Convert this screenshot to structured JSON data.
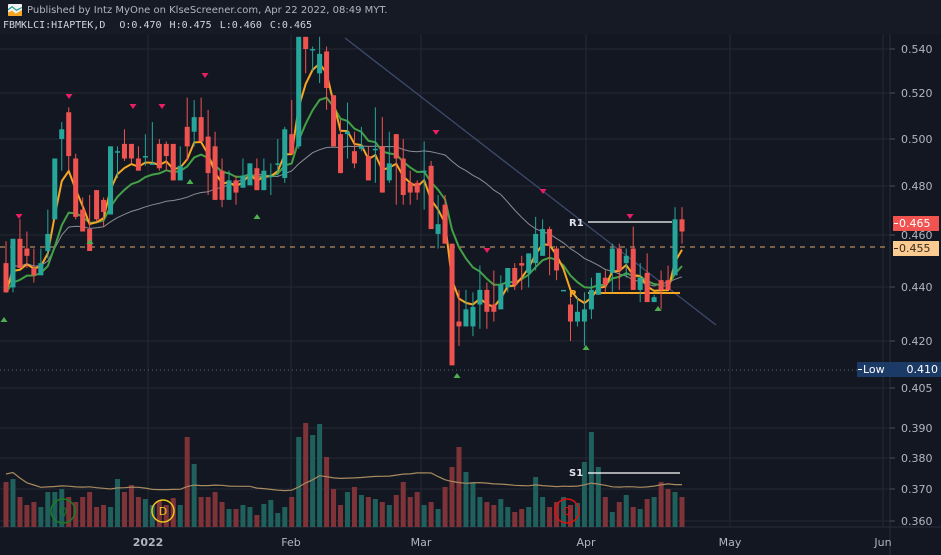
{
  "header": {
    "published_text": "Published by Intz MyOne on KlseScreener.com, Apr 22 2022, 08:49 MYT.",
    "symbol": "FBMKLCI:HIAPTEK,D",
    "open": "O:0.470",
    "high": "H:0.475",
    "low": "L:0.460",
    "close": "C:0.465",
    "logo_icon": "klsescreener-chart-logo-icon"
  },
  "price_axis": {
    "labels": [
      "0.540",
      "0.520",
      "0.500",
      "0.480",
      "0.460",
      "0.440",
      "0.420",
      "0.405",
      "0.390",
      "0.380",
      "0.370",
      "0.360"
    ],
    "close_tag": "0.465",
    "prev_tag": "0.455",
    "low_tag_label": "Low",
    "low_tag_value": "0.410"
  },
  "time_axis": {
    "labels": [
      "2022",
      "Feb",
      "Mar",
      "Apr",
      "May",
      "Jun"
    ]
  },
  "annotations": {
    "r1": "R1",
    "p": "P",
    "s1": "S1",
    "d_marker": "D",
    "q_marker": "Q"
  },
  "colors": {
    "background": "#131722",
    "up": "#26a69a",
    "down": "#ef5350",
    "vol_up": "#1f5f5c",
    "vol_down": "#7d3338",
    "ema_fast": "#f5a623",
    "ema_slow": "#43a047",
    "sma_long": "#8a8d96",
    "trendline": "#3c4a6b",
    "grid": "#242833"
  },
  "chart_data": {
    "type": "candlestick",
    "title": "FBMKLCI:HIAPTEK,D",
    "interval": "D",
    "last_bar": {
      "open": 0.47,
      "high": 0.475,
      "low": 0.46,
      "close": 0.465
    },
    "y_ticks": [
      0.54,
      0.52,
      0.5,
      0.48,
      0.46,
      0.44,
      0.42,
      0.405,
      0.39,
      0.38,
      0.37,
      0.36
    ],
    "x_ticks": [
      "2022",
      "Feb",
      "Mar",
      "Apr",
      "May",
      "Jun"
    ],
    "ylim": [
      0.355,
      0.545
    ],
    "reference_lines": {
      "previous_close": 0.455,
      "period_low": 0.41,
      "R1": 0.466,
      "P": 0.437,
      "S1": 0.376
    },
    "candles": [
      [
        0.452,
        0.44,
        0.461,
        0.44
      ],
      [
        0.442,
        0.462,
        0.462,
        0.44
      ],
      [
        0.462,
        0.45,
        0.47,
        0.45
      ],
      [
        0.458,
        0.455,
        0.465,
        0.45
      ],
      [
        0.45,
        0.447,
        0.458,
        0.444
      ],
      [
        0.447,
        0.452,
        0.458,
        0.447
      ],
      [
        0.457,
        0.464,
        0.474,
        0.454
      ],
      [
        0.47,
        0.495,
        0.495,
        0.47
      ],
      [
        0.503,
        0.507,
        0.51,
        0.49
      ],
      [
        0.514,
        0.496,
        0.516,
        0.49
      ],
      [
        0.495,
        0.471,
        0.497,
        0.47
      ],
      [
        0.474,
        0.465,
        0.479,
        0.465
      ],
      [
        0.466,
        0.457,
        0.48,
        0.457
      ],
      [
        0.482,
        0.47,
        0.482,
        0.469
      ],
      [
        0.478,
        0.473,
        0.479,
        0.467
      ],
      [
        0.472,
        0.5,
        0.5,
        0.472
      ],
      [
        0.498,
        0.498,
        0.5,
        0.487
      ],
      [
        0.501,
        0.495,
        0.507,
        0.494
      ],
      [
        0.501,
        0.495,
        0.501,
        0.493
      ],
      [
        0.495,
        0.49,
        0.5,
        0.49
      ],
      [
        0.496,
        0.496,
        0.505,
        0.492
      ],
      [
        0.493,
        0.493,
        0.51,
        0.493
      ],
      [
        0.501,
        0.491,
        0.503,
        0.49
      ],
      [
        0.501,
        0.496,
        0.502,
        0.49
      ],
      [
        0.501,
        0.486,
        0.501,
        0.486
      ],
      [
        0.486,
        0.492,
        0.5,
        0.488
      ],
      [
        0.508,
        0.5,
        0.52,
        0.494
      ],
      [
        0.506,
        0.512,
        0.519,
        0.5
      ],
      [
        0.512,
        0.502,
        0.52,
        0.502
      ],
      [
        0.504,
        0.489,
        0.515,
        0.48
      ],
      [
        0.5,
        0.478,
        0.506,
        0.478
      ],
      [
        0.49,
        0.478,
        0.495,
        0.475
      ],
      [
        0.478,
        0.486,
        0.49,
        0.48
      ],
      [
        0.486,
        0.481,
        0.488,
        0.476
      ],
      [
        0.483,
        0.488,
        0.495,
        0.483
      ],
      [
        0.484,
        0.493,
        0.493,
        0.484
      ],
      [
        0.491,
        0.482,
        0.495,
        0.482
      ],
      [
        0.482,
        0.49,
        0.495,
        0.482
      ],
      [
        0.488,
        0.488,
        0.493,
        0.48
      ],
      [
        0.493,
        0.493,
        0.503,
        0.488
      ],
      [
        0.487,
        0.507,
        0.508,
        0.485
      ],
      [
        0.505,
        0.497,
        0.519,
        0.497
      ],
      [
        0.5,
        0.545,
        0.545,
        0.499
      ],
      [
        0.545,
        0.54,
        0.545,
        0.53
      ],
      [
        0.54,
        0.54,
        0.541,
        0.531
      ],
      [
        0.53,
        0.538,
        0.545,
        0.526
      ],
      [
        0.539,
        0.524,
        0.541,
        0.515
      ],
      [
        0.521,
        0.5,
        0.521,
        0.5
      ],
      [
        0.505,
        0.489,
        0.511,
        0.489
      ],
      [
        0.505,
        0.506,
        0.518,
        0.495
      ],
      [
        0.498,
        0.493,
        0.506,
        0.491
      ],
      [
        0.499,
        0.5,
        0.508,
        0.498
      ],
      [
        0.496,
        0.486,
        0.5,
        0.486
      ],
      [
        0.499,
        0.499,
        0.516,
        0.485
      ],
      [
        0.5,
        0.481,
        0.512,
        0.481
      ],
      [
        0.486,
        0.493,
        0.506,
        0.485
      ],
      [
        0.505,
        0.495,
        0.505,
        0.476
      ],
      [
        0.495,
        0.48,
        0.503,
        0.476
      ],
      [
        0.485,
        0.481,
        0.49,
        0.476
      ],
      [
        0.485,
        0.481,
        0.486,
        0.478
      ],
      [
        0.49,
        0.49,
        0.502,
        0.474
      ],
      [
        0.492,
        0.466,
        0.494,
        0.476
      ],
      [
        0.464,
        0.468,
        0.48,
        0.458
      ],
      [
        0.476,
        0.46,
        0.48,
        0.46
      ],
      [
        0.46,
        0.41,
        0.46,
        0.41
      ],
      [
        0.428,
        0.426,
        0.441,
        0.418
      ],
      [
        0.426,
        0.433,
        0.441,
        0.426
      ],
      [
        0.426,
        0.434,
        0.44,
        0.422
      ],
      [
        0.435,
        0.441,
        0.451,
        0.425
      ],
      [
        0.441,
        0.432,
        0.444,
        0.425
      ],
      [
        0.435,
        0.432,
        0.449,
        0.428
      ],
      [
        0.433,
        0.443,
        0.447,
        0.434
      ],
      [
        0.442,
        0.45,
        0.448,
        0.44
      ],
      [
        0.45,
        0.443,
        0.452,
        0.441
      ],
      [
        0.452,
        0.451,
        0.455,
        0.441
      ],
      [
        0.448,
        0.456,
        0.456,
        0.442
      ],
      [
        0.452,
        0.464,
        0.471,
        0.449
      ],
      [
        0.455,
        0.466,
        0.47,
        0.455
      ],
      [
        0.466,
        0.459,
        0.467,
        0.447
      ],
      [
        0.458,
        0.449,
        0.459,
        0.445
      ],
      [
        0.441,
        0.441,
        0.441,
        0.441
      ],
      [
        0.435,
        0.428,
        0.438,
        0.42
      ],
      [
        0.428,
        0.432,
        0.438,
        0.426
      ],
      [
        0.428,
        0.433,
        0.44,
        0.418
      ],
      [
        0.433,
        0.441,
        0.446,
        0.429
      ],
      [
        0.439,
        0.448,
        0.448,
        0.439
      ],
      [
        0.446,
        0.443,
        0.449,
        0.44
      ],
      [
        0.448,
        0.458,
        0.46,
        0.44
      ],
      [
        0.458,
        0.449,
        0.46,
        0.441
      ],
      [
        0.452,
        0.455,
        0.458,
        0.446
      ],
      [
        0.458,
        0.441,
        0.467,
        0.441
      ],
      [
        0.441,
        0.446,
        0.452,
        0.436
      ],
      [
        0.448,
        0.436,
        0.456,
        0.436
      ],
      [
        0.436,
        0.438,
        0.439,
        0.436
      ],
      [
        0.445,
        0.441,
        0.449,
        0.433
      ],
      [
        0.445,
        0.441,
        0.451,
        0.441
      ],
      [
        0.447,
        0.47,
        0.475,
        0.447
      ],
      [
        0.47,
        0.465,
        0.475,
        0.46
      ]
    ],
    "volume_note": "Volume histogram with moving average overlay at bottom pane; bars colored by candle direction"
  }
}
